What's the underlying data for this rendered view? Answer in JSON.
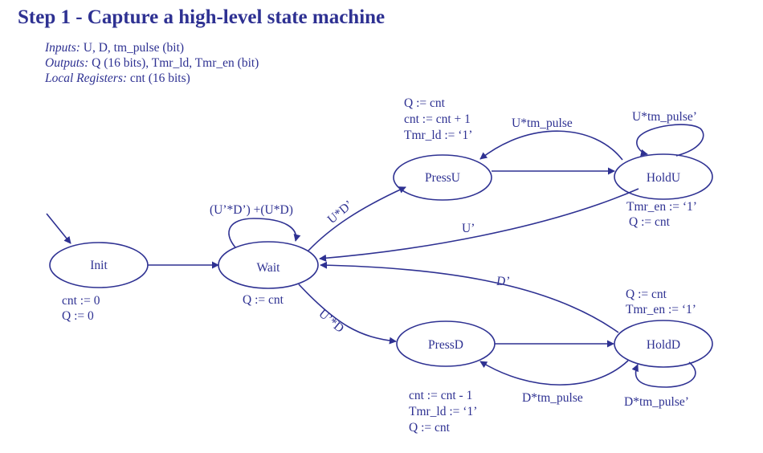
{
  "title": "Step 1 - Capture a high-level state machine",
  "io": {
    "inputs_label": "Inputs:",
    "inputs_value": "U, D, tm_pulse (bit)",
    "outputs_label": "Outputs:",
    "outputs_value": "Q (16 bits), Tmr_ld, Tmr_en (bit)",
    "locals_label": "Local Registers:",
    "locals_value": "cnt (16 bits)"
  },
  "states": {
    "init": "Init",
    "wait": "Wait",
    "pressu": "PressU",
    "holdu": "HoldU",
    "pressd": "PressD",
    "holdd": "HoldD"
  },
  "actions": {
    "init": [
      "cnt := 0",
      "Q := 0"
    ],
    "wait": [
      "Q := cnt"
    ],
    "pressu": [
      "Q := cnt",
      "cnt := cnt + 1",
      "Tmr_ld := ‘1’"
    ],
    "holdu": [
      "Tmr_en := ‘1’",
      "Q := cnt"
    ],
    "holdd": [
      "Q := cnt",
      "Tmr_en := ‘1’"
    ],
    "pressd": [
      "cnt := cnt - 1",
      "Tmr_ld := ‘1’",
      "Q := cnt"
    ]
  },
  "transitions": {
    "wait_self": "(U’*D’) +(U*D)",
    "wait_to_pressu": "U*D’",
    "wait_to_pressd": "U’*D",
    "holdu_to_pressu": "U*tm_pulse",
    "holdu_self": "U*tm_pulse’",
    "holdu_to_wait": "U’",
    "holdd_to_wait": "D’",
    "holdd_to_pressd": "D*tm_pulse",
    "holdd_self": "D*tm_pulse’"
  },
  "colors": {
    "accent": "#2e3192"
  }
}
